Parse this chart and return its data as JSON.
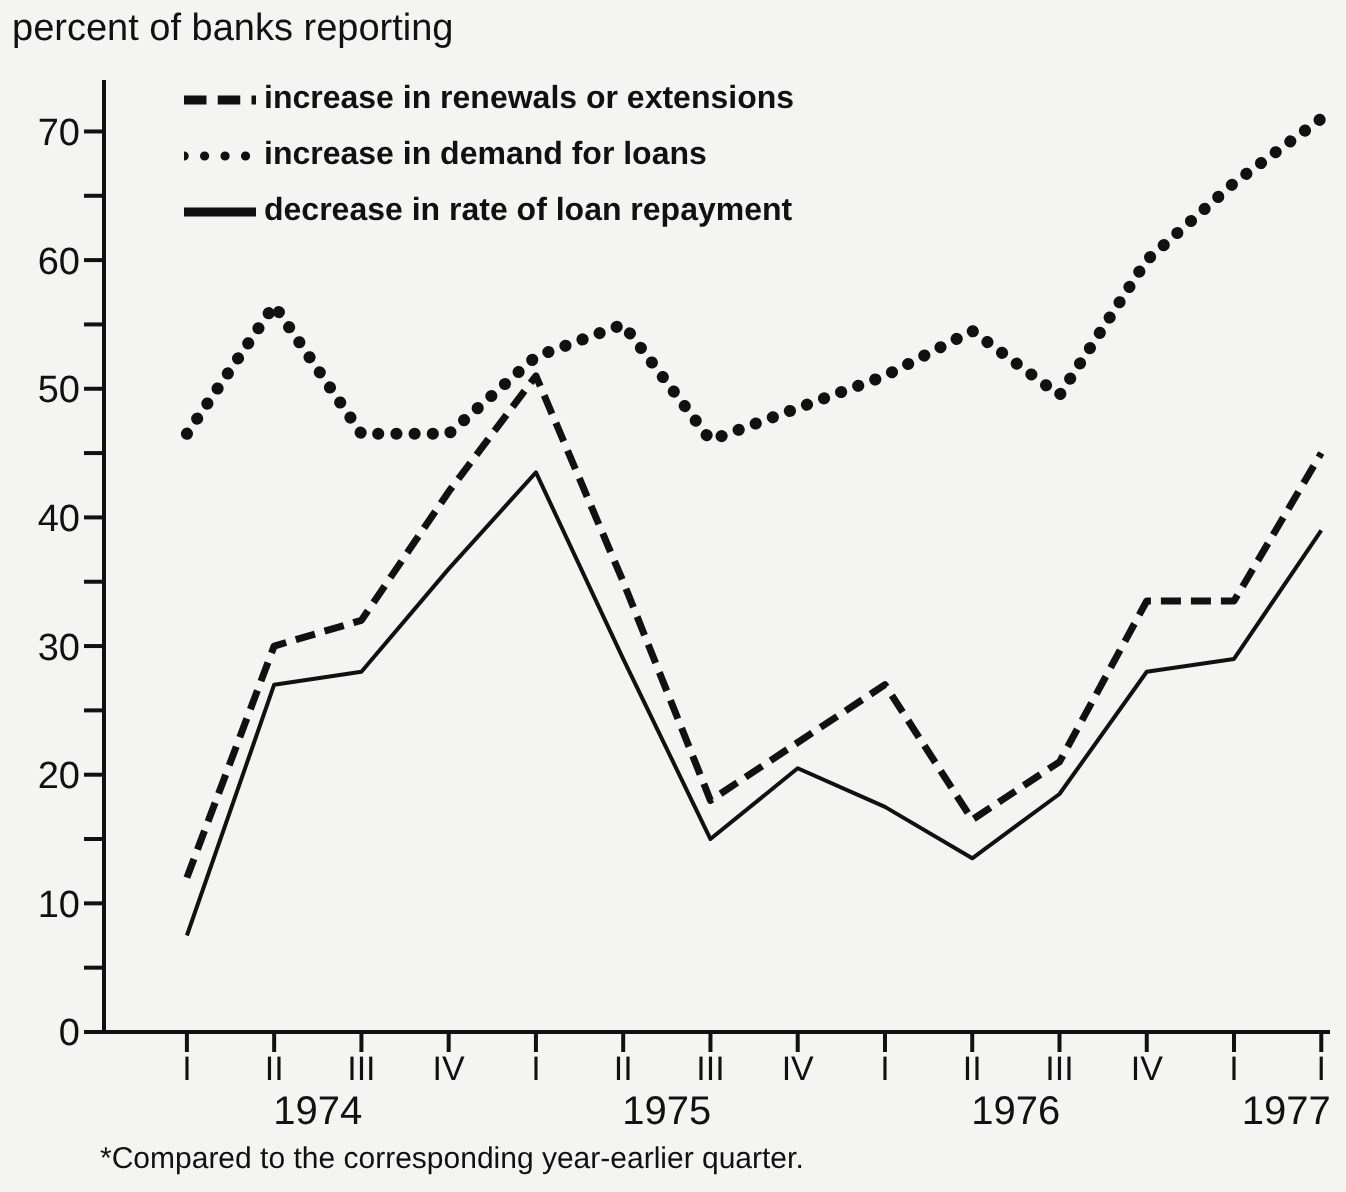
{
  "chart_data": {
    "type": "line",
    "ylabel": "percent of banks reporting",
    "categories": [
      "I",
      "II",
      "III",
      "IV",
      "I",
      "II",
      "III",
      "IV",
      "I",
      "II",
      "III",
      "IV",
      "I",
      "I"
    ],
    "series": [
      {
        "name": "increase in renewals or extensions",
        "color": "#111111",
        "line_style": "dashed",
        "values": [
          12,
          30,
          32,
          42,
          51,
          35,
          18,
          22.5,
          27,
          16.5,
          21,
          33.5,
          33.5,
          45
        ]
      },
      {
        "name": "increase in demand for loans",
        "color": "#111111",
        "line_style": "dotted",
        "values": [
          46.5,
          56.5,
          46.5,
          46.5,
          52.5,
          55,
          46,
          48.5,
          51,
          54.5,
          49.5,
          60,
          66,
          71
        ]
      },
      {
        "name": "decrease in rate of loan repayment",
        "color": "#111111",
        "line_style": "solid",
        "values": [
          7.5,
          27,
          28,
          36,
          43.5,
          29,
          15,
          20.5,
          17.5,
          13.5,
          18.5,
          28,
          29,
          39
        ]
      }
    ],
    "ylim": [
      0,
      74
    ],
    "yticks": [
      0,
      {
        "value": 5,
        "label": null
      },
      10,
      {
        "value": 15,
        "label": null
      },
      20,
      {
        "value": 25,
        "label": null
      },
      30,
      {
        "value": 35,
        "label": null
      },
      40,
      {
        "value": 45,
        "label": null
      },
      50,
      {
        "value": 55,
        "label": null
      },
      60,
      {
        "value": 65,
        "label": null
      },
      70
    ],
    "grid": false,
    "legend": "top left",
    "marker": "none",
    "annotations": [
      "1974",
      "1975",
      "1976",
      "1977",
      "*Compared to the corresponding year-earlier quarter."
    ]
  }
}
